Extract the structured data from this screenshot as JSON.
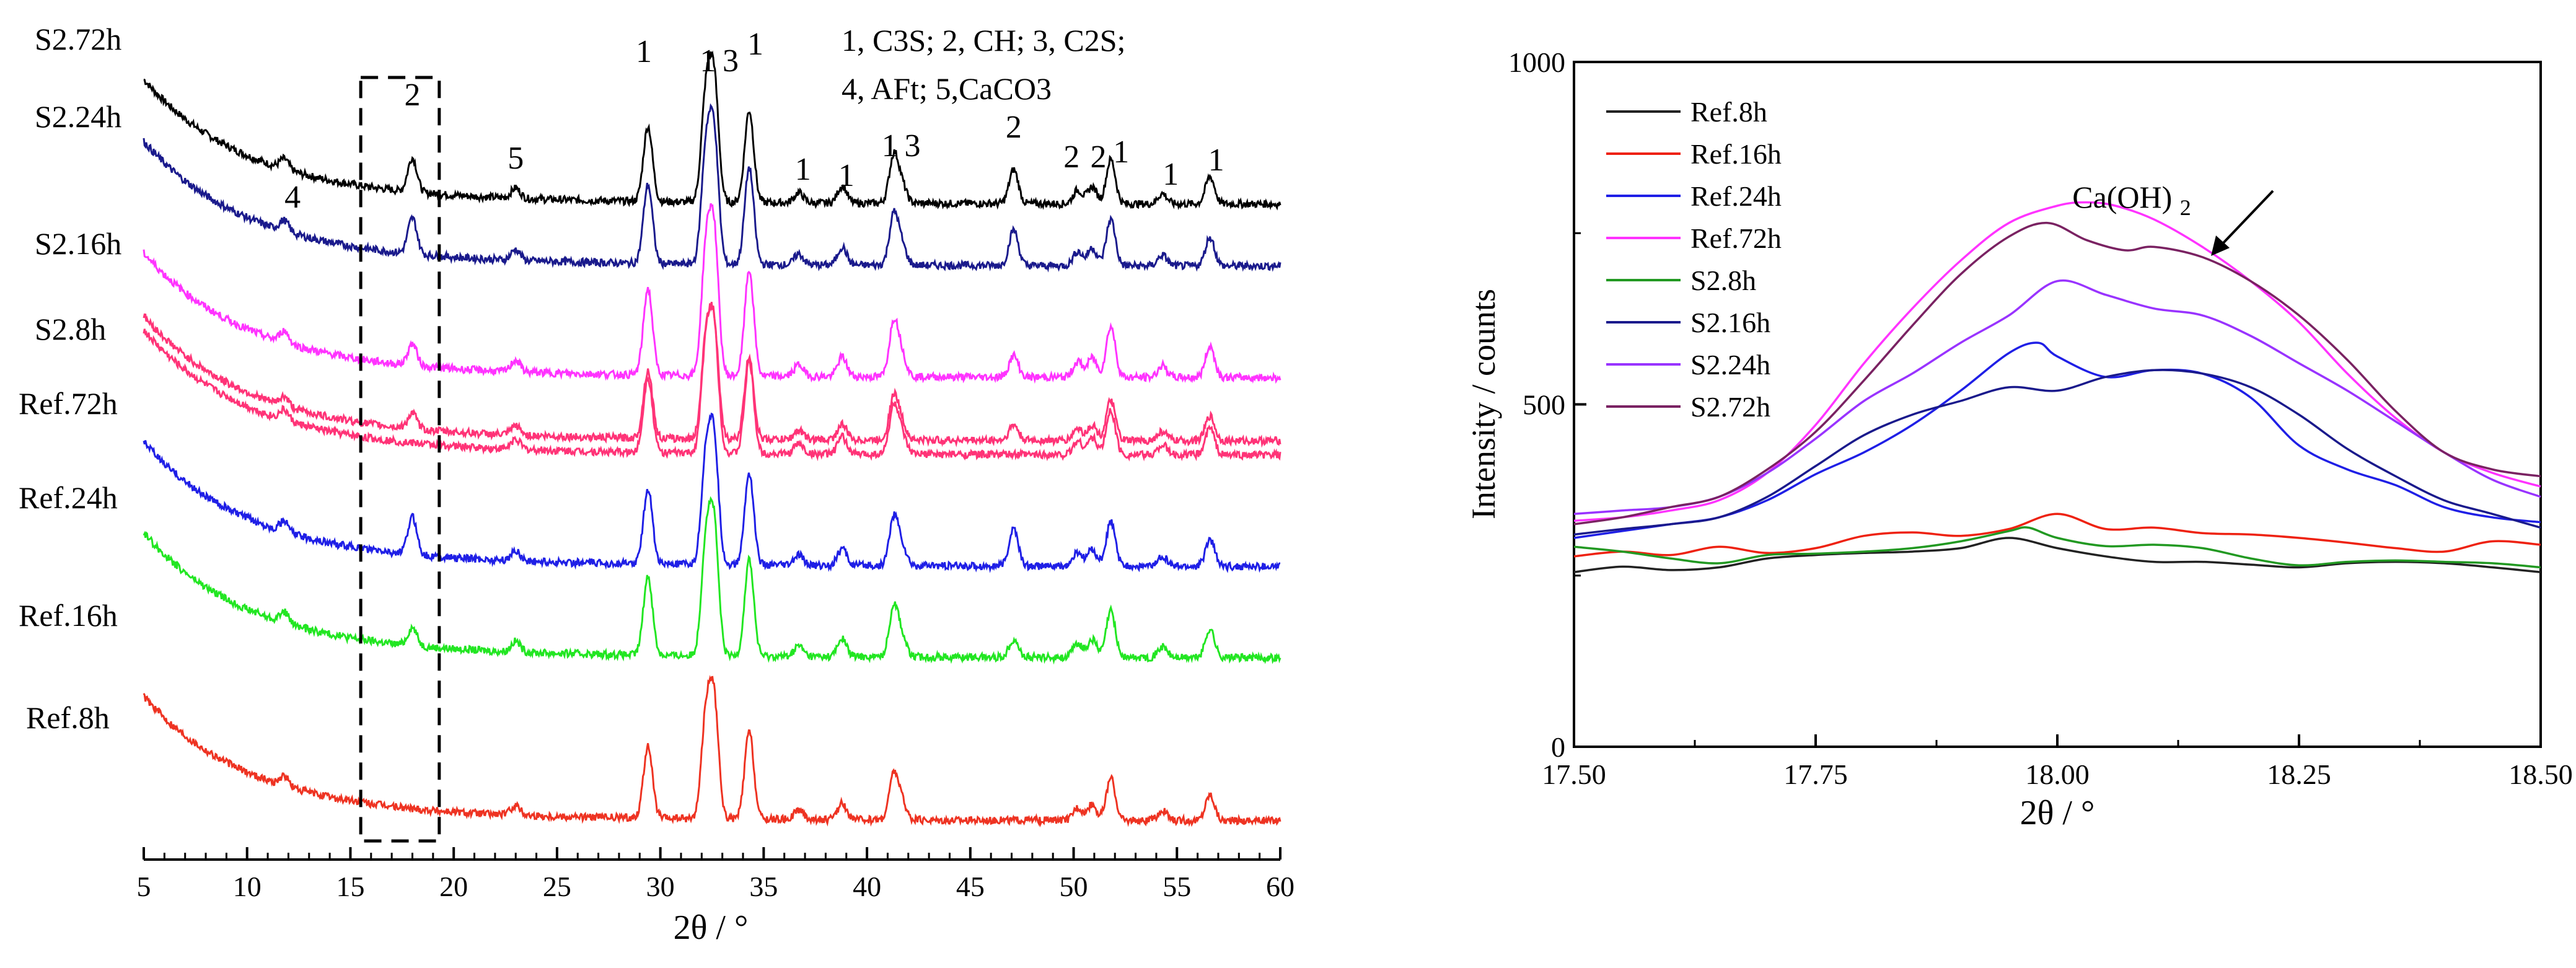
{
  "chart_data": [
    {
      "type": "line",
      "title": "",
      "xlabel": "2θ / °",
      "ylabel": "",
      "xlim": [
        5,
        60
      ],
      "xticks": [
        5,
        10,
        15,
        20,
        25,
        30,
        35,
        40,
        45,
        50,
        55,
        60
      ],
      "xtick_labels": [
        "5",
        "10",
        "15",
        "20",
        "25",
        "30",
        "35",
        "40",
        "45",
        "50",
        "55",
        "60"
      ],
      "series": [
        {
          "name": "S2.72h",
          "label": "S2.72h",
          "color": "#000000"
        },
        {
          "name": "S2.24h",
          "label": "S2.24h",
          "color": "#1a1a8c"
        },
        {
          "name": "S2.16h",
          "label": "S2.16h",
          "color": "#ff33ff"
        },
        {
          "name": "S2.8h",
          "label": "S2.8h",
          "color": "#ff3377"
        },
        {
          "name": "Ref.72h",
          "label": "Ref.72h",
          "color": "#ff3377"
        },
        {
          "name": "Ref.24h",
          "label": "Ref.24h",
          "color": "#1f1fe6"
        },
        {
          "name": "Ref.16h",
          "label": "Ref.16h",
          "color": "#22e622"
        },
        {
          "name": "Ref.8h",
          "label": "Ref.8h",
          "color": "#ee3322"
        }
      ],
      "peaks": [
        {
          "x": 29.4,
          "strength": 2.2,
          "label": "1"
        },
        {
          "x": 32.2,
          "strength": 3.0,
          "label": "1"
        },
        {
          "x": 32.6,
          "strength": 3.5,
          "label": "3"
        },
        {
          "x": 34.3,
          "strength": 2.7,
          "label": "1"
        },
        {
          "x": 18.0,
          "strength": 1.0,
          "label": "2"
        },
        {
          "x": 41.3,
          "strength": 1.4,
          "label": "1"
        },
        {
          "x": 41.7,
          "strength": 0.5,
          "label": "3"
        },
        {
          "x": 47.1,
          "strength": 1.0,
          "label": "2"
        },
        {
          "x": 51.8,
          "strength": 1.3,
          "label": "1"
        },
        {
          "x": 56.6,
          "strength": 0.8,
          "label": "1"
        },
        {
          "x": 36.7,
          "strength": 0.3,
          "label": "1"
        },
        {
          "x": 38.8,
          "strength": 0.5,
          "label": "1"
        },
        {
          "x": 50.2,
          "strength": 0.4,
          "label": "2"
        },
        {
          "x": 50.9,
          "strength": 0.5,
          "label": "2"
        },
        {
          "x": 54.3,
          "strength": 0.3,
          "label": "1"
        },
        {
          "x": 23.0,
          "strength": 0.3,
          "label": "5"
        },
        {
          "x": 11.8,
          "strength": 0.3,
          "label": "4"
        }
      ],
      "annotation_lines": [
        "1, C3S; 2, CH; 3, C2S;",
        "4, AFt;   5,CaCO3"
      ],
      "dashed_box_range": [
        15.5,
        19.3
      ]
    },
    {
      "type": "line",
      "title": "",
      "xlabel": "2θ / °",
      "ylabel": "Intensity / counts",
      "xlim": [
        17.5,
        18.5
      ],
      "ylim": [
        0,
        1000
      ],
      "xticks": [
        17.5,
        17.75,
        18.0,
        18.25,
        18.5
      ],
      "xtick_labels": [
        "17.50",
        "17.75",
        "18.00",
        "18.25",
        "18.50"
      ],
      "yticks": [
        0,
        500,
        1000
      ],
      "ytick_labels": [
        "0",
        "500",
        "1000"
      ],
      "legend": "top-left",
      "annotation": "Ca(OH)2",
      "series": [
        {
          "name": "Ref.8h",
          "color": "#222222",
          "x": [
            17.5,
            17.55,
            17.6,
            17.65,
            17.7,
            17.75,
            17.8,
            17.85,
            17.9,
            17.95,
            18.0,
            18.05,
            18.1,
            18.15,
            18.2,
            18.25,
            18.3,
            18.35,
            18.4,
            18.45,
            18.5
          ],
          "y": [
            255,
            263,
            258,
            262,
            275,
            280,
            283,
            285,
            290,
            305,
            290,
            278,
            270,
            270,
            266,
            262,
            268,
            270,
            268,
            262,
            255
          ]
        },
        {
          "name": "Ref.16h",
          "color": "#ee2211",
          "x": [
            17.5,
            17.55,
            17.6,
            17.65,
            17.7,
            17.75,
            17.8,
            17.85,
            17.9,
            17.95,
            18.0,
            18.05,
            18.1,
            18.15,
            18.2,
            18.25,
            18.3,
            18.35,
            18.4,
            18.45,
            18.5
          ],
          "y": [
            278,
            285,
            280,
            292,
            283,
            290,
            308,
            313,
            308,
            318,
            340,
            318,
            320,
            312,
            310,
            305,
            298,
            290,
            285,
            300,
            295
          ]
        },
        {
          "name": "Ref.24h",
          "color": "#1f1fe6",
          "x": [
            17.5,
            17.55,
            17.6,
            17.65,
            17.7,
            17.75,
            17.8,
            17.85,
            17.9,
            17.95,
            17.98,
            18.0,
            18.05,
            18.1,
            18.15,
            18.2,
            18.25,
            18.3,
            18.35,
            18.4,
            18.45,
            18.5
          ],
          "y": [
            305,
            315,
            325,
            335,
            360,
            398,
            430,
            470,
            520,
            575,
            590,
            570,
            540,
            550,
            545,
            510,
            440,
            405,
            382,
            350,
            335,
            328
          ]
        },
        {
          "name": "Ref.72h",
          "color": "#ff33ff",
          "x": [
            17.5,
            17.55,
            17.6,
            17.65,
            17.7,
            17.75,
            17.8,
            17.85,
            17.9,
            17.95,
            18.0,
            18.03,
            18.06,
            18.1,
            18.15,
            18.2,
            18.25,
            18.3,
            18.35,
            18.4,
            18.45,
            18.5
          ],
          "y": [
            330,
            335,
            345,
            360,
            400,
            470,
            560,
            640,
            710,
            765,
            790,
            795,
            790,
            770,
            730,
            680,
            620,
            545,
            480,
            430,
            400,
            380
          ]
        },
        {
          "name": "S2.8h",
          "color": "#229922",
          "x": [
            17.5,
            17.55,
            17.6,
            17.65,
            17.7,
            17.75,
            17.8,
            17.85,
            17.9,
            17.95,
            17.97,
            18.0,
            18.05,
            18.1,
            18.15,
            18.2,
            18.25,
            18.3,
            18.35,
            18.4,
            18.45,
            18.5
          ],
          "y": [
            292,
            285,
            275,
            268,
            280,
            282,
            285,
            290,
            300,
            315,
            320,
            305,
            293,
            295,
            290,
            275,
            265,
            270,
            272,
            270,
            268,
            262
          ]
        },
        {
          "name": "S2.16h",
          "color": "#1a1a8c",
          "x": [
            17.5,
            17.55,
            17.6,
            17.65,
            17.7,
            17.75,
            17.8,
            17.85,
            17.9,
            17.95,
            18.0,
            18.05,
            18.1,
            18.15,
            18.2,
            18.25,
            18.3,
            18.35,
            18.4,
            18.45,
            18.5
          ],
          "y": [
            310,
            318,
            325,
            335,
            365,
            410,
            455,
            485,
            505,
            525,
            520,
            540,
            550,
            545,
            525,
            485,
            435,
            395,
            360,
            340,
            320
          ]
        },
        {
          "name": "S2.24h",
          "color": "#9933ff",
          "x": [
            17.5,
            17.55,
            17.6,
            17.65,
            17.7,
            17.75,
            17.8,
            17.85,
            17.9,
            17.95,
            18.0,
            18.05,
            18.1,
            18.15,
            18.2,
            18.25,
            18.3,
            18.35,
            18.4,
            18.45,
            18.5
          ],
          "y": [
            340,
            345,
            350,
            365,
            400,
            450,
            505,
            545,
            590,
            630,
            680,
            660,
            640,
            630,
            600,
            560,
            520,
            475,
            430,
            390,
            365
          ]
        },
        {
          "name": "S2.72h",
          "color": "#7a2262",
          "x": [
            17.5,
            17.55,
            17.6,
            17.65,
            17.7,
            17.75,
            17.8,
            17.85,
            17.9,
            17.95,
            17.99,
            18.03,
            18.07,
            18.1,
            18.15,
            18.2,
            18.25,
            18.3,
            18.35,
            18.4,
            18.45,
            18.5
          ],
          "y": [
            325,
            335,
            350,
            365,
            405,
            460,
            535,
            615,
            690,
            745,
            765,
            740,
            725,
            730,
            715,
            680,
            630,
            565,
            490,
            430,
            405,
            395
          ]
        }
      ]
    }
  ]
}
